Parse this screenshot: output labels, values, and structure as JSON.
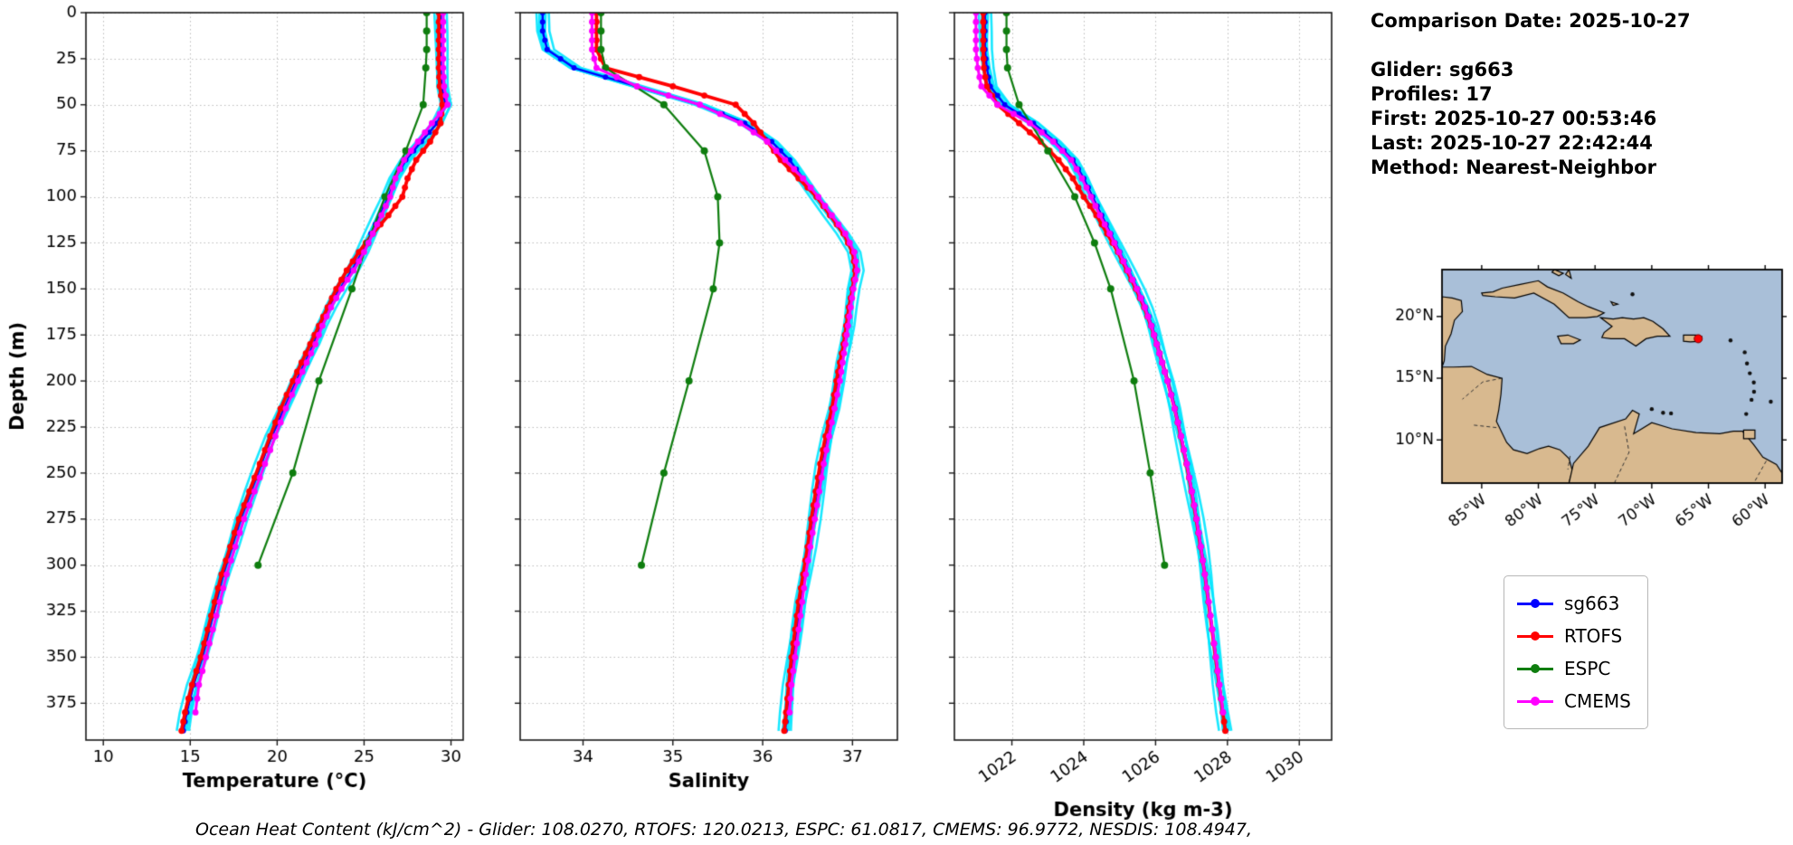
{
  "info_panel": {
    "comparison_date": "Comparison Date: 2025-10-27",
    "glider": "Glider: sg663",
    "profiles": "Profiles: 17",
    "first": "First: 2025-10-27 00:53:46",
    "last": "Last: 2025-10-27 22:42:44",
    "method": "Method: Nearest-Neighbor"
  },
  "footer": {
    "text": "Ocean Heat Content (kJ/cm^2) - Glider: 108.0270,  RTOFS: 120.0213,  ESPC: 61.0817,  CMEMS: 96.9772,  NESDIS: 108.4947,"
  },
  "legend": {
    "items": [
      {
        "label": "sg663",
        "color": "#0000ff"
      },
      {
        "label": "RTOFS",
        "color": "#ff0000"
      },
      {
        "label": "ESPC",
        "color": "#0e7d0e"
      },
      {
        "label": "CMEMS",
        "color": "#ff00ff"
      }
    ]
  },
  "depth_axis": {
    "label": "Depth (m)",
    "lim": [
      0,
      395
    ],
    "ticks": [
      0,
      25,
      50,
      75,
      100,
      125,
      150,
      175,
      200,
      225,
      250,
      275,
      300,
      325,
      350,
      375
    ]
  },
  "depth_grids": {
    "main": [
      0,
      10,
      20,
      30,
      40,
      50,
      60,
      70,
      80,
      90,
      100,
      110,
      120,
      130,
      140,
      150,
      160,
      170,
      180,
      190,
      200,
      215,
      230,
      245,
      260,
      275,
      290,
      305,
      320,
      335,
      350,
      365,
      380,
      390
    ],
    "cmems": [
      0,
      10,
      20,
      30,
      40,
      50,
      60,
      70,
      80,
      90,
      100,
      110,
      120,
      130,
      140,
      150,
      160,
      170,
      180,
      190,
      200,
      215,
      230,
      245,
      260,
      275,
      290,
      305,
      320,
      335,
      350,
      365,
      380
    ],
    "espc": [
      0,
      10,
      20,
      30,
      50,
      75,
      100,
      125,
      150,
      200,
      250,
      300
    ]
  },
  "chart_data": [
    {
      "id": "temperature",
      "type": "line",
      "xlabel": "Temperature (°C)",
      "ylabel": "Depth (m)",
      "xlim": [
        9.0,
        30.7
      ],
      "xticks": [
        10,
        15,
        20,
        25,
        30
      ],
      "xtick_labels": [
        "10",
        "15",
        "20",
        "25",
        "30"
      ],
      "rotate_xticks": false,
      "series": [
        {
          "name": "glider-profiles",
          "color": "#00e6ff",
          "band": true,
          "same_as": "sg663"
        },
        {
          "name": "sg663",
          "color": "#0000ff",
          "line_width": 2.4,
          "marker_radius": 3,
          "dense": true,
          "depths_key": "main",
          "values": [
            29.4,
            29.4,
            29.4,
            29.4,
            29.45,
            29.7,
            29.2,
            28.3,
            27.4,
            26.8,
            26.4,
            25.9,
            25.4,
            24.9,
            24.3,
            23.6,
            23.0,
            22.5,
            22.1,
            21.6,
            21.1,
            20.4,
            19.7,
            19.1,
            18.5,
            17.9,
            17.4,
            16.9,
            16.5,
            16.1,
            15.7,
            15.2,
            14.8,
            14.6
          ]
        },
        {
          "name": "RTOFS",
          "color": "#ff0000",
          "line_width": 3.8,
          "marker_radius": 3.4,
          "dense": true,
          "depths_key": "main",
          "values": [
            29.3,
            29.3,
            29.3,
            29.3,
            29.35,
            29.5,
            29.4,
            28.8,
            28.0,
            27.5,
            27.2,
            26.4,
            25.5,
            24.7,
            24.0,
            23.4,
            22.9,
            22.4,
            21.9,
            21.4,
            20.9,
            20.2,
            19.6,
            19.0,
            18.4,
            17.8,
            17.3,
            16.8,
            16.4,
            16.0,
            15.6,
            15.1,
            14.7,
            14.5
          ]
        },
        {
          "name": "ESPC",
          "color": "#0e7d0e",
          "line_width": 2.2,
          "marker_radius": 4,
          "dense": false,
          "depths_key": "espc",
          "values": [
            28.6,
            28.6,
            28.6,
            28.55,
            28.4,
            27.4,
            26.2,
            25.2,
            24.3,
            22.4,
            20.9,
            18.9
          ]
        },
        {
          "name": "CMEMS",
          "color": "#ff00ff",
          "line_width": 3,
          "marker_radius": 3.4,
          "dense": true,
          "depths_key": "cmems",
          "values": [
            29.55,
            29.55,
            29.55,
            29.55,
            29.6,
            29.8,
            28.9,
            28.1,
            27.3,
            26.8,
            26.5,
            26.0,
            25.5,
            25.0,
            24.4,
            23.7,
            23.1,
            22.6,
            22.2,
            21.7,
            21.2,
            20.5,
            19.9,
            19.3,
            18.7,
            18.1,
            17.6,
            17.1,
            16.7,
            16.3,
            15.9,
            15.5,
            15.3
          ]
        }
      ]
    },
    {
      "id": "salinity",
      "type": "line",
      "xlabel": "Salinity",
      "ylabel": "Depth (m)",
      "xlim": [
        33.3,
        37.5
      ],
      "xticks": [
        34,
        35,
        36,
        37
      ],
      "xtick_labels": [
        "34",
        "35",
        "36",
        "37"
      ],
      "rotate_xticks": false,
      "series": [
        {
          "name": "glider-profiles",
          "color": "#00e6ff",
          "band": true,
          "same_as": "sg663"
        },
        {
          "name": "sg663",
          "color": "#0000ff",
          "line_width": 2.4,
          "marker_radius": 3,
          "dense": true,
          "depths_key": "main",
          "values": [
            33.55,
            33.55,
            33.6,
            33.9,
            34.6,
            35.3,
            35.8,
            36.1,
            36.3,
            36.45,
            36.6,
            36.75,
            36.9,
            37.02,
            37.05,
            37.0,
            36.97,
            36.95,
            36.92,
            36.88,
            36.85,
            36.8,
            36.73,
            36.67,
            36.62,
            36.57,
            36.52,
            36.47,
            36.42,
            36.38,
            36.34,
            36.3,
            36.27,
            36.25
          ]
        },
        {
          "name": "RTOFS",
          "color": "#ff0000",
          "line_width": 3.8,
          "marker_radius": 3.4,
          "dense": true,
          "depths_key": "main",
          "values": [
            34.15,
            34.15,
            34.15,
            34.25,
            35.0,
            35.7,
            35.9,
            36.05,
            36.2,
            36.4,
            36.6,
            36.75,
            36.9,
            37.0,
            37.03,
            37.0,
            36.96,
            36.93,
            36.9,
            36.86,
            36.82,
            36.77,
            36.7,
            36.64,
            36.59,
            36.54,
            36.5,
            36.45,
            36.4,
            36.36,
            36.32,
            36.29,
            36.26,
            36.24
          ]
        },
        {
          "name": "ESPC",
          "color": "#0e7d0e",
          "line_width": 2.2,
          "marker_radius": 4,
          "dense": false,
          "depths_key": "espc",
          "values": [
            34.2,
            34.2,
            34.2,
            34.25,
            34.9,
            35.35,
            35.5,
            35.52,
            35.45,
            35.18,
            34.9,
            34.65
          ]
        },
        {
          "name": "CMEMS",
          "color": "#ff00ff",
          "line_width": 3,
          "marker_radius": 3.4,
          "dense": true,
          "depths_key": "cmems",
          "values": [
            34.1,
            34.1,
            34.1,
            34.15,
            34.6,
            35.3,
            35.75,
            36.05,
            36.25,
            36.45,
            36.62,
            36.77,
            36.92,
            37.02,
            37.05,
            37.01,
            36.98,
            36.95,
            36.92,
            36.89,
            36.86,
            36.8,
            36.74,
            36.68,
            36.63,
            36.58,
            36.53,
            36.48,
            36.44,
            36.4,
            36.36,
            36.32,
            36.3
          ]
        }
      ]
    },
    {
      "id": "density",
      "type": "line",
      "xlabel": "Density (kg m-3)",
      "ylabel": "Depth (m)",
      "xlim": [
        1020.4,
        1030.9
      ],
      "xticks": [
        1022,
        1024,
        1026,
        1028,
        1030
      ],
      "xtick_labels": [
        "1022",
        "1024",
        "1026",
        "1028",
        "1030"
      ],
      "rotate_xticks": true,
      "series": [
        {
          "name": "glider-profiles",
          "color": "#00e6ff",
          "band": true,
          "same_as": "sg663"
        },
        {
          "name": "sg663",
          "color": "#0000ff",
          "line_width": 2.4,
          "marker_radius": 3,
          "dense": true,
          "depths_key": "main",
          "values": [
            1021.25,
            1021.25,
            1021.25,
            1021.3,
            1021.4,
            1021.8,
            1022.6,
            1023.2,
            1023.7,
            1024.0,
            1024.25,
            1024.5,
            1024.75,
            1025.0,
            1025.25,
            1025.5,
            1025.72,
            1025.9,
            1026.05,
            1026.2,
            1026.35,
            1026.55,
            1026.72,
            1026.88,
            1027.02,
            1027.15,
            1027.27,
            1027.38,
            1027.48,
            1027.58,
            1027.68,
            1027.78,
            1027.88,
            1027.95
          ]
        },
        {
          "name": "RTOFS",
          "color": "#ff0000",
          "line_width": 3.8,
          "marker_radius": 3.4,
          "dense": true,
          "depths_key": "main",
          "values": [
            1021.2,
            1021.2,
            1021.2,
            1021.22,
            1021.3,
            1021.6,
            1022.2,
            1022.8,
            1023.3,
            1023.7,
            1024.0,
            1024.35,
            1024.65,
            1024.95,
            1025.2,
            1025.45,
            1025.68,
            1025.87,
            1026.03,
            1026.18,
            1026.33,
            1026.53,
            1026.7,
            1026.86,
            1027.0,
            1027.13,
            1027.25,
            1027.37,
            1027.47,
            1027.57,
            1027.67,
            1027.77,
            1027.87,
            1027.94
          ]
        },
        {
          "name": "ESPC",
          "color": "#0e7d0e",
          "line_width": 2.2,
          "marker_radius": 4,
          "dense": false,
          "depths_key": "espc",
          "values": [
            1021.85,
            1021.85,
            1021.85,
            1021.88,
            1022.2,
            1023.0,
            1023.75,
            1024.3,
            1024.75,
            1025.4,
            1025.85,
            1026.25
          ]
        },
        {
          "name": "CMEMS",
          "color": "#ff00ff",
          "line_width": 3,
          "marker_radius": 3.4,
          "dense": true,
          "depths_key": "cmems",
          "values": [
            1021.0,
            1021.0,
            1021.0,
            1021.05,
            1021.15,
            1021.6,
            1022.5,
            1023.15,
            1023.65,
            1023.95,
            1024.2,
            1024.45,
            1024.72,
            1024.98,
            1025.23,
            1025.48,
            1025.7,
            1025.88,
            1026.03,
            1026.18,
            1026.33,
            1026.53,
            1026.71,
            1026.87,
            1027.01,
            1027.14,
            1027.26,
            1027.37,
            1027.48,
            1027.58,
            1027.68,
            1027.78,
            1027.88
          ]
        }
      ]
    }
  ],
  "map": {
    "lat_ticks": [
      "20°N",
      "15°N",
      "10°N"
    ],
    "lat_values": [
      20,
      15,
      10
    ],
    "lon_ticks": [
      "85°W",
      "80°W",
      "75°W",
      "70°W",
      "65°W",
      "60°W"
    ],
    "lon_values": [
      -85,
      -80,
      -75,
      -70,
      -65,
      -60
    ],
    "extent": {
      "lon": [
        -88.5,
        -58.5
      ],
      "lat": [
        6.5,
        23.8
      ]
    },
    "marker": {
      "lon": -65.9,
      "lat": 18.2,
      "color": "#ff0000"
    },
    "ocean_color": "#a9bfd8",
    "land_color": "#d8b98f"
  }
}
